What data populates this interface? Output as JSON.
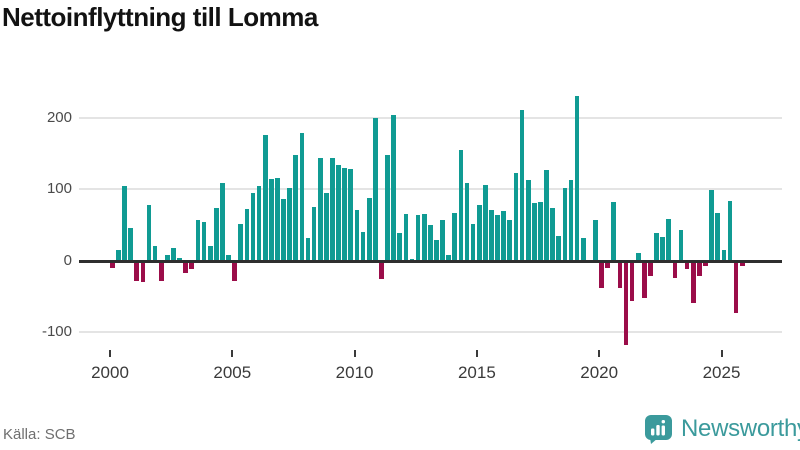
{
  "title": "Nettoinflyttning till Lomma",
  "source": "Källa: SCB",
  "branding": {
    "logo_text": "Newsworthy",
    "logo_icon": "newsworthy-bars-speech-bubble",
    "logo_color": "#3b9a9c"
  },
  "colors": {
    "positive_bar": "#109b93",
    "negative_bar": "#9b0d49",
    "zero_axis": "#2e2e2e",
    "gridline": "#e4e4e4",
    "title_text": "#121212",
    "axis_text": "#4a4a4a",
    "source_text": "#6f6f6f"
  },
  "chart_data": {
    "type": "bar",
    "title": "Nettoinflyttning till Lomma",
    "frequency": "quarterly",
    "period": "2000 Q1 – 2025 Q4",
    "xlabel": "",
    "ylabel": "",
    "ylim": [
      -130,
      245
    ],
    "grid": "horizontal",
    "legend": "none",
    "x_tick_labels": [
      "2000",
      "2005",
      "2010",
      "2015",
      "2020",
      "2025"
    ],
    "y_tick_labels": [
      "200",
      "100",
      "0",
      "-100"
    ],
    "y_tick_values": [
      200,
      100,
      0,
      -100
    ],
    "positive_color": "#109b93",
    "negative_color": "#9b0d49",
    "series_by_year": [
      {
        "year": 2000,
        "quarters": [
          -11,
          15,
          104,
          45
        ]
      },
      {
        "year": 2001,
        "quarters": [
          -28,
          -30,
          78,
          20
        ]
      },
      {
        "year": 2002,
        "quarters": [
          -28,
          8,
          17,
          4
        ]
      },
      {
        "year": 2003,
        "quarters": [
          -17,
          -12,
          57,
          54
        ]
      },
      {
        "year": 2004,
        "quarters": [
          20,
          73,
          108,
          7
        ]
      },
      {
        "year": 2005,
        "quarters": [
          -28,
          51,
          72,
          94
        ]
      },
      {
        "year": 2006,
        "quarters": [
          104,
          176,
          114,
          116
        ]
      },
      {
        "year": 2007,
        "quarters": [
          86,
          102,
          147,
          179
        ]
      },
      {
        "year": 2008,
        "quarters": [
          32,
          75,
          143,
          94
        ]
      },
      {
        "year": 2009,
        "quarters": [
          143,
          134,
          130,
          128
        ]
      },
      {
        "year": 2010,
        "quarters": [
          71,
          40,
          88,
          199
        ]
      },
      {
        "year": 2011,
        "quarters": [
          -26,
          148,
          204,
          38
        ]
      },
      {
        "year": 2012,
        "quarters": [
          65,
          2,
          63,
          65
        ]
      },
      {
        "year": 2013,
        "quarters": [
          50,
          28,
          57,
          7
        ]
      },
      {
        "year": 2014,
        "quarters": [
          66,
          154,
          109,
          51
        ]
      },
      {
        "year": 2015,
        "quarters": [
          77,
          105,
          71,
          63
        ]
      },
      {
        "year": 2016,
        "quarters": [
          69,
          56,
          123,
          210
        ]
      },
      {
        "year": 2017,
        "quarters": [
          113,
          80,
          82,
          127
        ]
      },
      {
        "year": 2018,
        "quarters": [
          74,
          34,
          101,
          112
        ]
      },
      {
        "year": 2019,
        "quarters": [
          230,
          32,
          0,
          56
        ]
      },
      {
        "year": 2020,
        "quarters": [
          -39,
          -11,
          82,
          -39
        ]
      },
      {
        "year": 2021,
        "quarters": [
          -118,
          -56,
          11,
          -52
        ]
      },
      {
        "year": 2022,
        "quarters": [
          -21,
          38,
          33,
          58
        ]
      },
      {
        "year": 2023,
        "quarters": [
          -24,
          42,
          -12,
          -59
        ]
      },
      {
        "year": 2024,
        "quarters": [
          -22,
          -8,
          98,
          66
        ]
      },
      {
        "year": 2025,
        "quarters": [
          15,
          83,
          -73,
          -8
        ]
      }
    ]
  }
}
